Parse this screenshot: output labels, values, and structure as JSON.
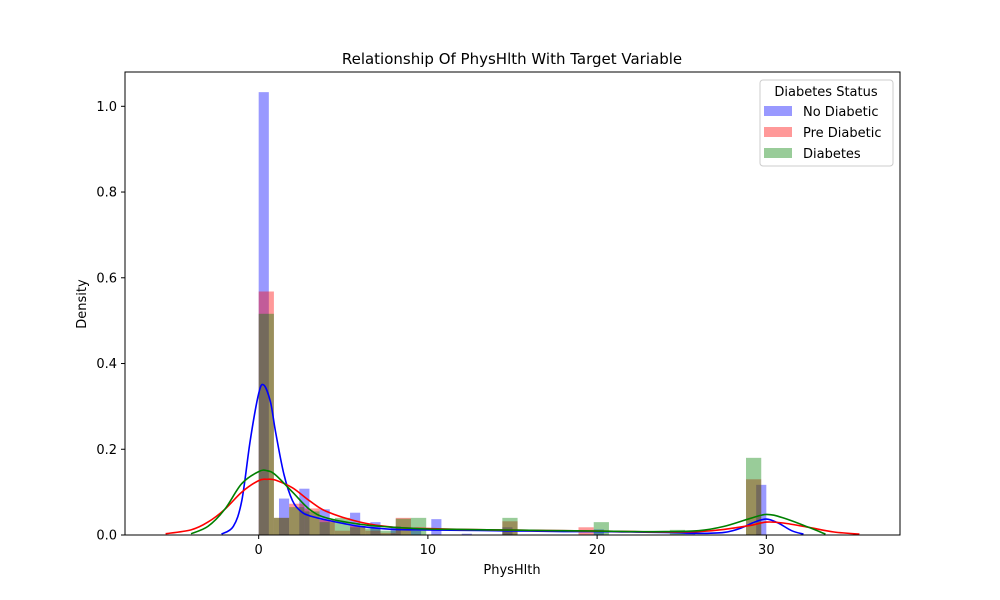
{
  "chart_data": {
    "type": "histogram-kde",
    "title": "Relationship Of PhysHlth With Target Variable",
    "xlabel": "PhysHlth",
    "ylabel": "Density",
    "xlim": [
      -7.9,
      37.9
    ],
    "ylim": [
      0,
      1.08
    ],
    "xticks": [
      0,
      10,
      20,
      30
    ],
    "yticks": [
      0.0,
      0.2,
      0.4,
      0.6,
      0.8,
      1.0
    ],
    "ytick_labels": [
      "0.0",
      "0.2",
      "0.4",
      "0.6",
      "0.8",
      "1.0"
    ],
    "grid": false,
    "legend": {
      "title": "Diabetes Status",
      "position": "top-right"
    },
    "series": [
      {
        "name": "No Diabetic",
        "color": "#0000ff",
        "bin_edges": [
          0,
          0.6,
          1.2,
          1.8,
          2.4,
          3.0,
          3.6,
          4.2,
          4.8,
          5.4,
          6.0,
          6.6,
          7.2,
          7.8,
          8.4,
          9.0,
          9.6,
          10.2,
          10.8,
          11.4,
          12.0,
          12.6,
          13.2,
          13.8,
          14.4,
          15.0,
          15.6,
          16.2,
          16.8,
          17.4,
          18.0,
          18.6,
          19.2,
          19.8,
          20.4,
          21.0,
          21.6,
          22.2,
          22.8,
          23.4,
          24.0,
          24.6,
          25.2,
          25.8,
          26.4,
          27.0,
          27.6,
          28.2,
          28.8,
          29.4,
          30.0
        ],
        "bin_heights": [
          1.033,
          0.0,
          0.085,
          0.0,
          0.108,
          0.0,
          0.06,
          0.0,
          0.0,
          0.052,
          0.0,
          0.03,
          0.0,
          0.02,
          0.0,
          0.01,
          0.0,
          0.037,
          0.0,
          0.0,
          0.003,
          0.0,
          0.0,
          0.0,
          0.018,
          0.0,
          0.0,
          0.0,
          0.0,
          0.0,
          0.0,
          0.0,
          0.0,
          0.013,
          0.0,
          0.0,
          0.0,
          0.0,
          0.0,
          0.0,
          0.0,
          0.0,
          0.007,
          0.0,
          0.0,
          0.0,
          0.0,
          0.0,
          0.0,
          0.117
        ],
        "kde_x": [
          -2.2,
          -1.5,
          -1.0,
          -0.5,
          0.0,
          0.3,
          0.7,
          1.0,
          1.5,
          2.0,
          2.5,
          3.0,
          4.0,
          5.0,
          6.0,
          8.0,
          10.0,
          12.0,
          14.0,
          16.0,
          18.0,
          20.0,
          22.0,
          24.0,
          26.0,
          27.5,
          28.5,
          29.3,
          30.0,
          30.7,
          31.5,
          32.2
        ],
        "kde_y": [
          0.002,
          0.02,
          0.08,
          0.22,
          0.33,
          0.35,
          0.31,
          0.24,
          0.14,
          0.08,
          0.055,
          0.045,
          0.035,
          0.027,
          0.02,
          0.013,
          0.012,
          0.011,
          0.01,
          0.009,
          0.008,
          0.008,
          0.007,
          0.006,
          0.004,
          0.006,
          0.016,
          0.03,
          0.037,
          0.028,
          0.01,
          0.002
        ]
      },
      {
        "name": "Pre Diabetic",
        "color": "#ff0000",
        "bin_edges": [
          0,
          0.9,
          1.8,
          2.7,
          3.6,
          4.5,
          5.4,
          6.3,
          7.2,
          8.1,
          9.0,
          9.9,
          10.8,
          11.7,
          12.6,
          13.5,
          14.4,
          15.3,
          16.2,
          17.1,
          18.0,
          18.9,
          19.8,
          20.7,
          21.6,
          22.5,
          23.4,
          24.3,
          25.2,
          26.1,
          27.0,
          27.9,
          28.8,
          29.7,
          30.6
        ],
        "bin_heights": [
          0.568,
          0.04,
          0.073,
          0.062,
          0.035,
          0.01,
          0.021,
          0.01,
          0.005,
          0.04,
          0.0,
          0.0,
          0.0,
          0.0,
          0.0,
          0.0,
          0.032,
          0.0,
          0.0,
          0.0,
          0.0,
          0.018,
          0.0,
          0.0,
          0.0,
          0.0,
          0.0,
          0.0,
          0.0,
          0.0,
          0.0,
          0.0,
          0.13,
          0.0
        ],
        "kde_x": [
          -5.5,
          -4.0,
          -3.0,
          -2.0,
          -1.0,
          0.0,
          0.5,
          1.0,
          2.0,
          3.0,
          4.0,
          6.0,
          8.0,
          10.0,
          12.0,
          14.0,
          16.0,
          18.0,
          20.0,
          22.0,
          24.0,
          26.0,
          27.5,
          29.0,
          30.0,
          31.0,
          32.5,
          34.0,
          35.5
        ],
        "kde_y": [
          0.003,
          0.012,
          0.03,
          0.06,
          0.1,
          0.127,
          0.13,
          0.128,
          0.11,
          0.08,
          0.055,
          0.03,
          0.018,
          0.015,
          0.013,
          0.012,
          0.011,
          0.01,
          0.009,
          0.008,
          0.007,
          0.008,
          0.013,
          0.022,
          0.03,
          0.028,
          0.018,
          0.007,
          0.002
        ]
      },
      {
        "name": "Diabetes",
        "color": "#008000",
        "bin_edges": [
          0,
          0.9,
          1.8,
          2.7,
          3.6,
          4.5,
          5.4,
          6.3,
          7.2,
          8.1,
          9.0,
          9.9,
          10.8,
          11.7,
          12.6,
          13.5,
          14.4,
          15.3,
          16.2,
          17.1,
          18.0,
          18.9,
          19.8,
          20.7,
          21.6,
          22.5,
          23.4,
          24.3,
          25.2,
          26.1,
          27.0,
          27.9,
          28.8,
          29.7,
          30.6
        ],
        "bin_heights": [
          0.516,
          0.04,
          0.065,
          0.055,
          0.03,
          0.04,
          0.018,
          0.015,
          0.01,
          0.038,
          0.04,
          0.0,
          0.0,
          0.0,
          0.0,
          0.0,
          0.04,
          0.0,
          0.0,
          0.0,
          0.0,
          0.0,
          0.03,
          0.0,
          0.0,
          0.0,
          0.0,
          0.012,
          0.0,
          0.0,
          0.0,
          0.0,
          0.18,
          0.0
        ],
        "kde_x": [
          -4.0,
          -3.0,
          -2.0,
          -1.0,
          0.0,
          0.5,
          1.0,
          2.0,
          3.0,
          4.0,
          6.0,
          8.0,
          10.0,
          12.0,
          14.0,
          16.0,
          18.0,
          20.0,
          22.0,
          24.0,
          26.0,
          27.5,
          29.0,
          30.0,
          31.0,
          32.5,
          33.5
        ],
        "kde_y": [
          0.003,
          0.02,
          0.06,
          0.12,
          0.148,
          0.15,
          0.14,
          0.1,
          0.06,
          0.04,
          0.025,
          0.018,
          0.014,
          0.013,
          0.012,
          0.011,
          0.01,
          0.009,
          0.008,
          0.008,
          0.01,
          0.02,
          0.038,
          0.048,
          0.04,
          0.018,
          0.002
        ]
      }
    ]
  }
}
